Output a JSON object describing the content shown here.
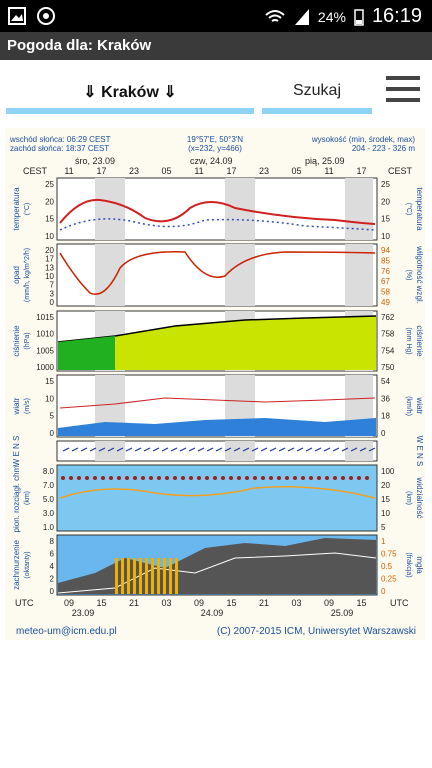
{
  "status": {
    "battery": "24%",
    "time": "16:19"
  },
  "app": {
    "title": "Pogoda dla: Kraków"
  },
  "search": {
    "city": "⇓ Kraków ⇓",
    "button": "Szukaj"
  },
  "meteogram": {
    "info_left": [
      "wschód słońca: 06:29 CEST",
      "zachód słońca: 18:37 CEST"
    ],
    "info_center": [
      "19°57'E, 50°3'N",
      "(x=232, y=466)"
    ],
    "info_right": [
      "wysokość (min, środek, max)",
      "204 - 223 - 326 m"
    ],
    "days": [
      "śro, 23.09",
      "czw, 24.09",
      "pią, 25.09"
    ],
    "top_hours": [
      "11",
      "17",
      "23",
      "05",
      "11",
      "17",
      "23",
      "05",
      "11",
      "17"
    ],
    "cest": "CEST",
    "bottom_hours": [
      "09",
      "15",
      "21",
      "03",
      "09",
      "15",
      "21",
      "03",
      "09",
      "15"
    ],
    "bottom_dates": [
      "23.09",
      "24.09",
      "25.09"
    ],
    "utc": "UTC",
    "panels": [
      {
        "left_label": "temperatura",
        "left_unit": "(°C)",
        "right_label": "temperatura",
        "right_unit": "(°C)",
        "left_ticks": [
          "25",
          "20",
          "15",
          "10"
        ],
        "right_ticks": [
          "25",
          "20",
          "15",
          "10"
        ]
      },
      {
        "left_label": "opad",
        "left_unit": "(mm/h, kg/m^2/h)",
        "right_label": "wilgotność wzgl.",
        "right_unit": "(%)",
        "left_ticks": [
          "20",
          "17",
          "13",
          "10",
          "7",
          "3",
          "0"
        ],
        "right_ticks": [
          "94",
          "85",
          "76",
          "67",
          "58",
          "49"
        ]
      },
      {
        "left_label": "ciśnienie",
        "left_unit": "(hPa)",
        "right_label": "ciśnienie",
        "right_unit": "(mm Hg)",
        "left_ticks": [
          "1015",
          "1010",
          "1005",
          "1000"
        ],
        "right_ticks": [
          "762",
          "758",
          "754",
          "750"
        ]
      },
      {
        "left_label": "wiatr",
        "left_unit": "(m/s)",
        "right_label": "wiatr",
        "right_unit": "(km/h)",
        "left_ticks": [
          "15",
          "10",
          "5",
          "0"
        ],
        "right_ticks": [
          "54",
          "36",
          "18",
          "0"
        ]
      },
      {
        "left_label": "W E N S",
        "left_unit": "",
        "right_label": "W E N S",
        "right_unit": "",
        "left_ticks": [],
        "right_ticks": []
      },
      {
        "left_label": "pion. rozciągł. chm.",
        "left_unit": "(km)",
        "right_label": "widzialność",
        "right_unit": "(km)",
        "left_ticks": [
          "8.0",
          "7.0",
          "5.0",
          "3.0",
          "1.0"
        ],
        "right_ticks": [
          "100",
          "20",
          "15",
          "10",
          "5"
        ]
      },
      {
        "left_label": "zachmurzenie",
        "left_unit": "(oktanty)",
        "right_label": "mgła",
        "right_unit": "(frakcja)",
        "left_ticks": [
          "8",
          "6",
          "4",
          "2",
          "0"
        ],
        "right_ticks": [
          "1",
          "0.75",
          "0.5",
          "0.25",
          "0"
        ]
      }
    ]
  },
  "footer": {
    "email": "meteo-um@icm.edu.pl",
    "copyright": "(C) 2007-2015 ICM, Uniwersytet Warszawski"
  }
}
